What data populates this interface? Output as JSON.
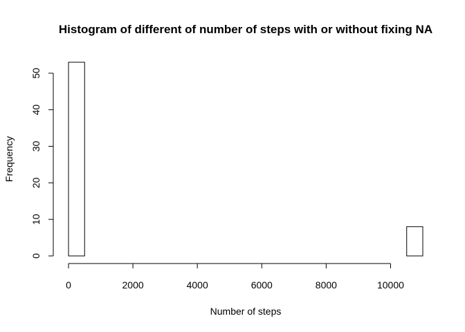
{
  "chart_data": {
    "type": "bar",
    "title": "Histogram of different of number of steps with or without fixing NA",
    "xlabel": "Number of steps",
    "ylabel": "Frequency",
    "bin_width": 500,
    "xlim": [
      0,
      11000
    ],
    "ylim": [
      0,
      53
    ],
    "x_ticks": [
      0,
      2000,
      4000,
      6000,
      8000,
      10000
    ],
    "x_tick_labels": [
      "0",
      "2000",
      "4000",
      "6000",
      "8000",
      "10000"
    ],
    "y_ticks": [
      0,
      10,
      20,
      30,
      40,
      50
    ],
    "y_tick_labels": [
      "0",
      "10",
      "20",
      "30",
      "40",
      "50"
    ],
    "bins": [
      {
        "start": 0,
        "end": 500,
        "count": 53
      },
      {
        "start": 500,
        "end": 1000,
        "count": 0
      },
      {
        "start": 1000,
        "end": 1500,
        "count": 0
      },
      {
        "start": 1500,
        "end": 2000,
        "count": 0
      },
      {
        "start": 2000,
        "end": 2500,
        "count": 0
      },
      {
        "start": 2500,
        "end": 3000,
        "count": 0
      },
      {
        "start": 3000,
        "end": 3500,
        "count": 0
      },
      {
        "start": 3500,
        "end": 4000,
        "count": 0
      },
      {
        "start": 4000,
        "end": 4500,
        "count": 0
      },
      {
        "start": 4500,
        "end": 5000,
        "count": 0
      },
      {
        "start": 5000,
        "end": 5500,
        "count": 0
      },
      {
        "start": 5500,
        "end": 6000,
        "count": 0
      },
      {
        "start": 6000,
        "end": 6500,
        "count": 0
      },
      {
        "start": 6500,
        "end": 7000,
        "count": 0
      },
      {
        "start": 7000,
        "end": 7500,
        "count": 0
      },
      {
        "start": 7500,
        "end": 8000,
        "count": 0
      },
      {
        "start": 8000,
        "end": 8500,
        "count": 0
      },
      {
        "start": 8500,
        "end": 9000,
        "count": 0
      },
      {
        "start": 9000,
        "end": 9500,
        "count": 0
      },
      {
        "start": 9500,
        "end": 10000,
        "count": 0
      },
      {
        "start": 10000,
        "end": 10500,
        "count": 0
      },
      {
        "start": 10500,
        "end": 11000,
        "count": 8
      }
    ]
  }
}
